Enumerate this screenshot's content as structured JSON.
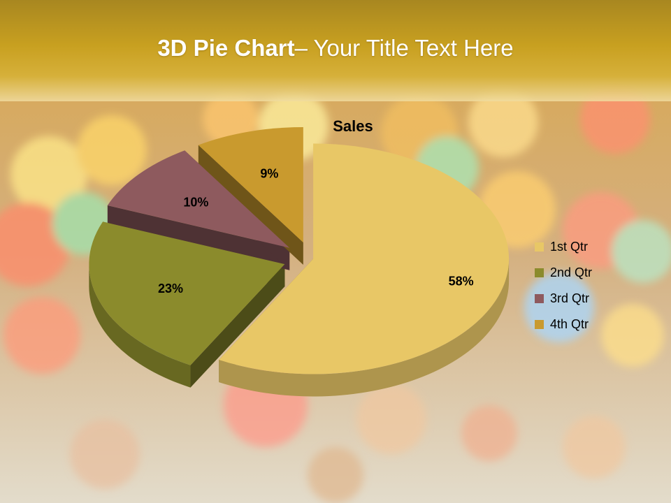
{
  "slide": {
    "title_bold": "3D Pie Chart",
    "title_rest": "– Your Title Text Here"
  },
  "chart_data": {
    "type": "pie",
    "title": "Sales",
    "categories": [
      "1st Qtr",
      "2nd Qtr",
      "3rd Qtr",
      "4th Qtr"
    ],
    "values": [
      58,
      23,
      10,
      9
    ],
    "data_labels": [
      "58%",
      "23%",
      "10%",
      "9%"
    ],
    "colors": [
      "#e8c766",
      "#8b8b2c",
      "#8e5a5e",
      "#c99a2e"
    ],
    "legend": "right",
    "style": "3d-exploded"
  }
}
